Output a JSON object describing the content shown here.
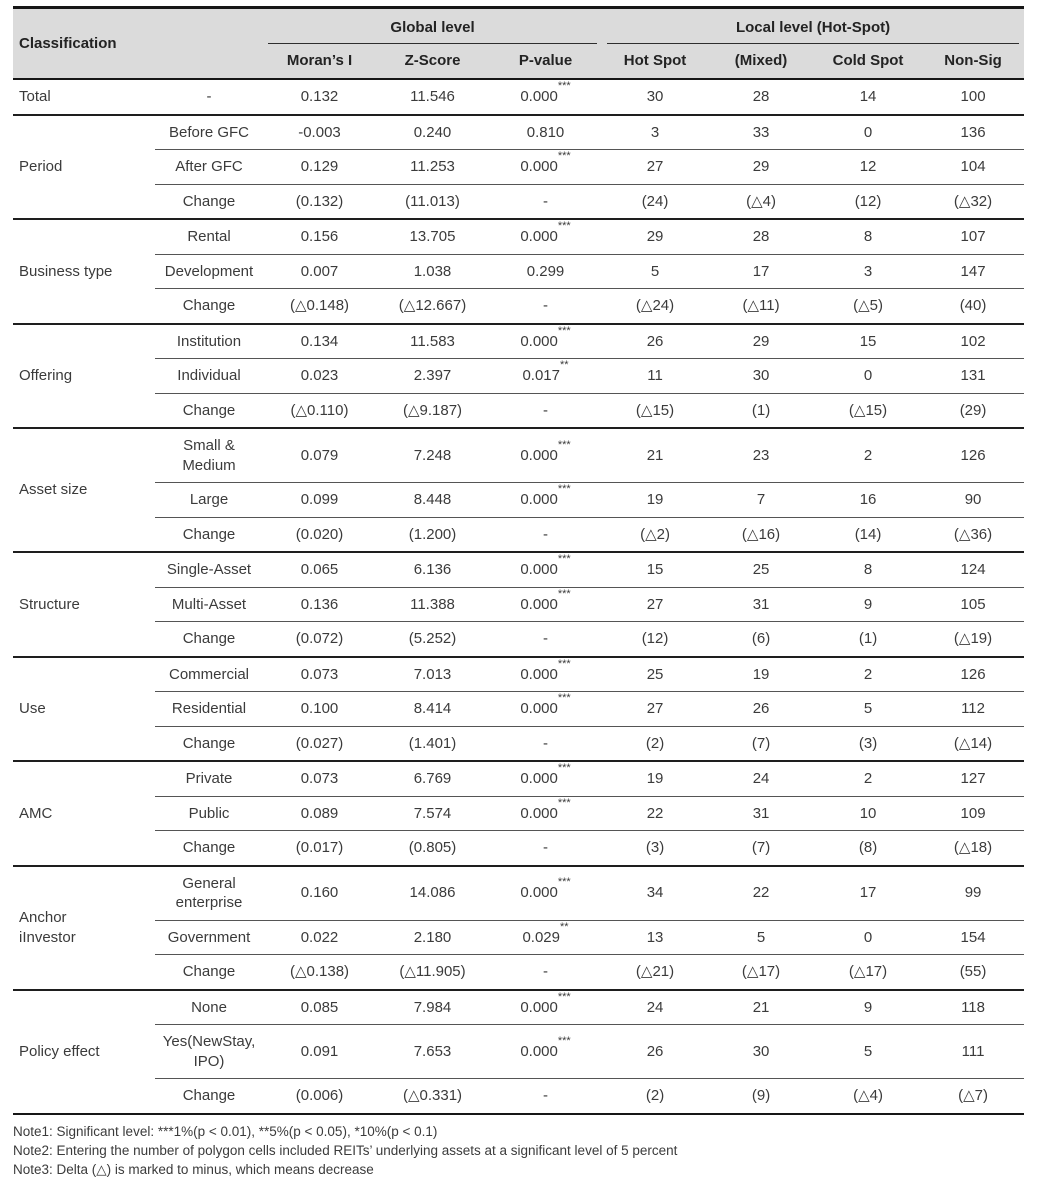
{
  "colors": {
    "header_bg": "#dbdbdb",
    "border_dark": "#161616",
    "row_line": "#555555",
    "text": "#3b3b3b"
  },
  "table": {
    "header": {
      "classification": "Classification",
      "groups": [
        {
          "label": "Global level",
          "cols": [
            "Moran’s I",
            "Z-Score",
            "P-value"
          ]
        },
        {
          "label": "Local level (Hot-Spot)",
          "cols": [
            "Hot Spot",
            "(Mixed)",
            "Cold Spot",
            "Non-Sig"
          ]
        }
      ]
    },
    "groups": [
      {
        "label": "Total",
        "rows": [
          {
            "sub": "-",
            "moran": "0.132",
            "z": "11.546",
            "p": "0.000",
            "stars": "***",
            "hot": "30",
            "mixed": "28",
            "cold": "14",
            "nonsig": "100"
          }
        ]
      },
      {
        "label": "Period",
        "rows": [
          {
            "sub": "Before GFC",
            "moran": "-0.003",
            "z": "0.240",
            "p": "0.810",
            "stars": "",
            "hot": "3",
            "mixed": "33",
            "cold": "0",
            "nonsig": "136"
          },
          {
            "sub": "After GFC",
            "moran": "0.129",
            "z": "11.253",
            "p": "0.000",
            "stars": "***",
            "hot": "27",
            "mixed": "29",
            "cold": "12",
            "nonsig": "104"
          },
          {
            "sub": "Change",
            "moran": "(0.132)",
            "z": "(11.013)",
            "p": "-",
            "stars": "",
            "hot": "(24)",
            "mixed": "(△4)",
            "cold": "(12)",
            "nonsig": "(△32)"
          }
        ]
      },
      {
        "label": "Business type",
        "rows": [
          {
            "sub": "Rental",
            "moran": "0.156",
            "z": "13.705",
            "p": "0.000",
            "stars": "***",
            "hot": "29",
            "mixed": "28",
            "cold": "8",
            "nonsig": "107"
          },
          {
            "sub": "Development",
            "moran": "0.007",
            "z": "1.038",
            "p": "0.299",
            "stars": "",
            "hot": "5",
            "mixed": "17",
            "cold": "3",
            "nonsig": "147"
          },
          {
            "sub": "Change",
            "moran": "(△0.148)",
            "z": "(△12.667)",
            "p": "-",
            "stars": "",
            "hot": "(△24)",
            "mixed": "(△11)",
            "cold": "(△5)",
            "nonsig": "(40)"
          }
        ]
      },
      {
        "label": "Offering",
        "rows": [
          {
            "sub": "Institution",
            "moran": "0.134",
            "z": "11.583",
            "p": "0.000",
            "stars": "***",
            "hot": "26",
            "mixed": "29",
            "cold": "15",
            "nonsig": "102"
          },
          {
            "sub": "Individual",
            "moran": "0.023",
            "z": "2.397",
            "p": "0.017",
            "stars": "**",
            "hot": "11",
            "mixed": "30",
            "cold": "0",
            "nonsig": "131"
          },
          {
            "sub": "Change",
            "moran": "(△0.110)",
            "z": "(△9.187)",
            "p": "-",
            "stars": "",
            "hot": "(△15)",
            "mixed": "(1)",
            "cold": "(△15)",
            "nonsig": "(29)"
          }
        ]
      },
      {
        "label": "Asset size",
        "rows": [
          {
            "sub": "Small & Medium",
            "moran": "0.079",
            "z": "7.248",
            "p": "0.000",
            "stars": "***",
            "hot": "21",
            "mixed": "23",
            "cold": "2",
            "nonsig": "126"
          },
          {
            "sub": "Large",
            "moran": "0.099",
            "z": "8.448",
            "p": "0.000",
            "stars": "***",
            "hot": "19",
            "mixed": "7",
            "cold": "16",
            "nonsig": "90"
          },
          {
            "sub": "Change",
            "moran": "(0.020)",
            "z": "(1.200)",
            "p": "-",
            "stars": "",
            "hot": "(△2)",
            "mixed": "(△16)",
            "cold": "(14)",
            "nonsig": "(△36)"
          }
        ]
      },
      {
        "label": "Structure",
        "rows": [
          {
            "sub": "Single-Asset",
            "moran": "0.065",
            "z": "6.136",
            "p": "0.000",
            "stars": "***",
            "hot": "15",
            "mixed": "25",
            "cold": "8",
            "nonsig": "124"
          },
          {
            "sub": "Multi-Asset",
            "moran": "0.136",
            "z": "11.388",
            "p": "0.000",
            "stars": "***",
            "hot": "27",
            "mixed": "31",
            "cold": "9",
            "nonsig": "105"
          },
          {
            "sub": "Change",
            "moran": "(0.072)",
            "z": "(5.252)",
            "p": "-",
            "stars": "",
            "hot": "(12)",
            "mixed": "(6)",
            "cold": "(1)",
            "nonsig": "(△19)"
          }
        ]
      },
      {
        "label": "Use",
        "rows": [
          {
            "sub": "Commercial",
            "moran": "0.073",
            "z": "7.013",
            "p": "0.000",
            "stars": "***",
            "hot": "25",
            "mixed": "19",
            "cold": "2",
            "nonsig": "126"
          },
          {
            "sub": "Residential",
            "moran": "0.100",
            "z": "8.414",
            "p": "0.000",
            "stars": "***",
            "hot": "27",
            "mixed": "26",
            "cold": "5",
            "nonsig": "112"
          },
          {
            "sub": "Change",
            "moran": "(0.027)",
            "z": "(1.401)",
            "p": "-",
            "stars": "",
            "hot": "(2)",
            "mixed": "(7)",
            "cold": "(3)",
            "nonsig": "(△14)"
          }
        ]
      },
      {
        "label": "AMC",
        "rows": [
          {
            "sub": "Private",
            "moran": "0.073",
            "z": "6.769",
            "p": "0.000",
            "stars": "***",
            "hot": "19",
            "mixed": "24",
            "cold": "2",
            "nonsig": "127"
          },
          {
            "sub": "Public",
            "moran": "0.089",
            "z": "7.574",
            "p": "0.000",
            "stars": "***",
            "hot": "22",
            "mixed": "31",
            "cold": "10",
            "nonsig": "109"
          },
          {
            "sub": "Change",
            "moran": "(0.017)",
            "z": "(0.805)",
            "p": "-",
            "stars": "",
            "hot": "(3)",
            "mixed": "(7)",
            "cold": "(8)",
            "nonsig": "(△18)"
          }
        ]
      },
      {
        "label": "Anchor\niInvestor",
        "rows": [
          {
            "sub": "General enterprise",
            "moran": "0.160",
            "z": "14.086",
            "p": "0.000",
            "stars": "***",
            "hot": "34",
            "mixed": "22",
            "cold": "17",
            "nonsig": "99"
          },
          {
            "sub": "Government",
            "moran": "0.022",
            "z": "2.180",
            "p": "0.029",
            "stars": "**",
            "hot": "13",
            "mixed": "5",
            "cold": "0",
            "nonsig": "154"
          },
          {
            "sub": "Change",
            "moran": "(△0.138)",
            "z": "(△11.905)",
            "p": "-",
            "stars": "",
            "hot": "(△21)",
            "mixed": "(△17)",
            "cold": "(△17)",
            "nonsig": "(55)"
          }
        ]
      },
      {
        "label": "Policy effect",
        "rows": [
          {
            "sub": "None",
            "moran": "0.085",
            "z": "7.984",
            "p": "0.000",
            "stars": "***",
            "hot": "24",
            "mixed": "21",
            "cold": "9",
            "nonsig": "118"
          },
          {
            "sub": "Yes(NewStay, IPO)",
            "moran": "0.091",
            "z": "7.653",
            "p": "0.000",
            "stars": "***",
            "hot": "26",
            "mixed": "30",
            "cold": "5",
            "nonsig": "111"
          },
          {
            "sub": "Change",
            "moran": "(0.006)",
            "z": "(△0.331)",
            "p": "-",
            "stars": "",
            "hot": "(2)",
            "mixed": "(9)",
            "cold": "(△4)",
            "nonsig": "(△7)"
          }
        ]
      }
    ]
  },
  "notes": [
    "Note1: Significant level: ***1%(p < 0.01), **5%(p < 0.05), *10%(p < 0.1)",
    "Note2: Entering the number of polygon cells included REITs’ underlying assets at a significant level of 5 percent",
    "Note3: Delta (△) is marked to minus, which means decrease"
  ]
}
